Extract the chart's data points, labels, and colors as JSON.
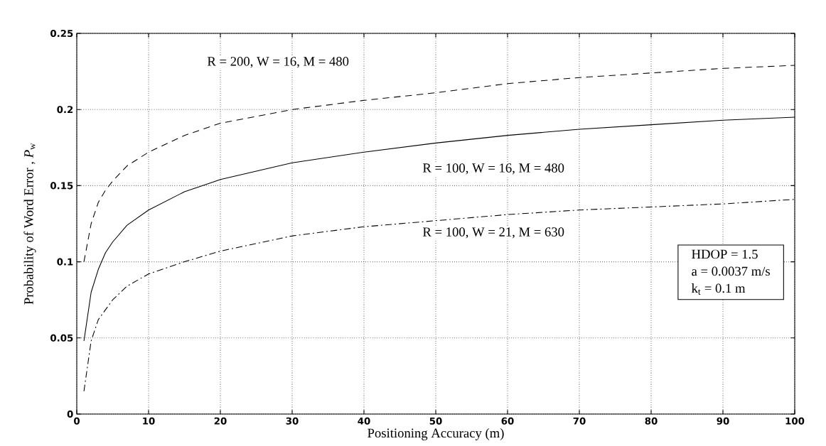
{
  "chart_data": {
    "type": "line",
    "xlabel": "Positioning Accuracy (m)",
    "ylabel": "Probability of Word Error , *P*$_{w}$",
    "xlim": [
      0,
      100
    ],
    "ylim": [
      0,
      0.25
    ],
    "xticks": [
      0,
      10,
      20,
      30,
      40,
      50,
      60,
      70,
      80,
      90,
      100
    ],
    "yticks": [
      0,
      0.05,
      0.1,
      0.15,
      0.2,
      0.25
    ],
    "grid": true,
    "annotations": [
      "HDOP = 1.5",
      "a = 0.0037 m/s",
      "k$_{t}$ = 0.1 m"
    ],
    "series": [
      {
        "name": "R = 200, W = 16, M = 480",
        "color": "#000000",
        "line_style": "dashed",
        "x": [
          1,
          2,
          3,
          4,
          5,
          7,
          10,
          15,
          20,
          30,
          40,
          50,
          60,
          70,
          80,
          90,
          100
        ],
        "values": [
          0.1,
          0.125,
          0.139,
          0.147,
          0.153,
          0.163,
          0.172,
          0.183,
          0.191,
          0.2,
          0.206,
          0.211,
          0.217,
          0.221,
          0.224,
          0.227,
          0.229
        ]
      },
      {
        "name": "R = 100, W = 16, M = 480",
        "color": "#000000",
        "line_style": "solid",
        "x": [
          1,
          2,
          3,
          4,
          5,
          7,
          10,
          15,
          20,
          30,
          40,
          50,
          60,
          70,
          80,
          90,
          100
        ],
        "values": [
          0.048,
          0.08,
          0.095,
          0.106,
          0.113,
          0.124,
          0.134,
          0.146,
          0.154,
          0.165,
          0.172,
          0.178,
          0.183,
          0.187,
          0.19,
          0.193,
          0.195
        ]
      },
      {
        "name": "R = 100, W = 21, M = 630",
        "color": "#000000",
        "line_style": "dashdot",
        "x": [
          1,
          2,
          3,
          5,
          7,
          10,
          15,
          20,
          30,
          40,
          50,
          60,
          70,
          80,
          90,
          100
        ],
        "values": [
          0.015,
          0.048,
          0.062,
          0.075,
          0.084,
          0.092,
          0.1,
          0.107,
          0.117,
          0.123,
          0.127,
          0.131,
          0.134,
          0.136,
          0.138,
          0.141
        ]
      }
    ]
  }
}
